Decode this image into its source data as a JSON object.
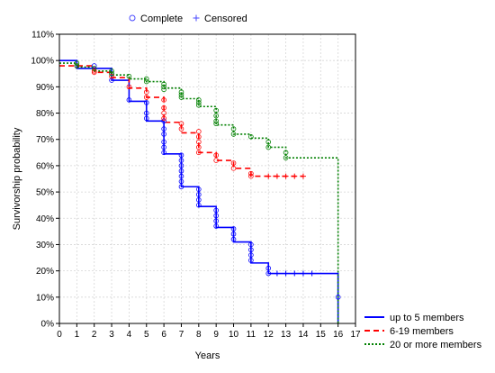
{
  "chart_data": {
    "type": "line",
    "subtype": "kaplan-meier survival curves",
    "title": "",
    "xlabel": "Years",
    "ylabel": "Survivorship probability",
    "xlim": [
      0,
      17
    ],
    "ylim": [
      0,
      1.1
    ],
    "x_ticks": [
      0,
      1,
      2,
      3,
      4,
      5,
      6,
      7,
      8,
      9,
      10,
      11,
      12,
      13,
      14,
      15,
      16,
      17
    ],
    "y_ticks": [
      0,
      0.1,
      0.2,
      0.3,
      0.4,
      0.5,
      0.6,
      0.7,
      0.8,
      0.9,
      1.0,
      1.1
    ],
    "y_tick_labels": [
      "0%",
      "10%",
      "20%",
      "30%",
      "40%",
      "50%",
      "60%",
      "70%",
      "80%",
      "90%",
      "100%",
      "110%"
    ],
    "grid": true,
    "marker_legend": {
      "placement": "top-left",
      "items": [
        {
          "label": "Complete",
          "marker": "circle"
        },
        {
          "label": "Censored",
          "marker": "plus"
        }
      ]
    },
    "legend_placement": "bottom-right",
    "series": [
      {
        "name": "up to 5 members",
        "color": "#0000ff",
        "dash": "solid",
        "steps": [
          [
            0,
            1.0
          ],
          [
            1,
            0.97
          ],
          [
            3,
            0.925
          ],
          [
            4,
            0.845
          ],
          [
            5,
            0.77
          ],
          [
            6,
            0.645
          ],
          [
            7,
            0.52
          ],
          [
            8,
            0.445
          ],
          [
            9,
            0.365
          ],
          [
            10,
            0.31
          ],
          [
            11,
            0.23
          ],
          [
            12,
            0.19
          ],
          [
            16,
            0.0
          ]
        ],
        "complete_events": [
          [
            1,
            0.98
          ],
          [
            2,
            0.98
          ],
          [
            3,
            0.95
          ],
          [
            3,
            0.925
          ],
          [
            4,
            0.85
          ],
          [
            5,
            0.84
          ],
          [
            5,
            0.8
          ],
          [
            5,
            0.78
          ],
          [
            6,
            0.77
          ],
          [
            6,
            0.74
          ],
          [
            6,
            0.72
          ],
          [
            6,
            0.69
          ],
          [
            6,
            0.67
          ],
          [
            6,
            0.65
          ],
          [
            7,
            0.64
          ],
          [
            7,
            0.62
          ],
          [
            7,
            0.6
          ],
          [
            7,
            0.58
          ],
          [
            7,
            0.56
          ],
          [
            7,
            0.54
          ],
          [
            7,
            0.52
          ],
          [
            8,
            0.51
          ],
          [
            8,
            0.49
          ],
          [
            8,
            0.47
          ],
          [
            8,
            0.45
          ],
          [
            9,
            0.43
          ],
          [
            9,
            0.41
          ],
          [
            9,
            0.39
          ],
          [
            9,
            0.37
          ],
          [
            10,
            0.36
          ],
          [
            10,
            0.34
          ],
          [
            10,
            0.32
          ],
          [
            11,
            0.3
          ],
          [
            11,
            0.28
          ],
          [
            11,
            0.26
          ],
          [
            11,
            0.24
          ],
          [
            12,
            0.21
          ],
          [
            12,
            0.19
          ],
          [
            16,
            0.1
          ]
        ],
        "censored": [
          [
            12.5,
            0.19
          ],
          [
            13,
            0.19
          ],
          [
            13.5,
            0.19
          ],
          [
            14,
            0.19
          ],
          [
            14.5,
            0.19
          ]
        ]
      },
      {
        "name": "6-19 members",
        "color": "#ff0000",
        "dash": "dashed",
        "steps": [
          [
            0,
            0.98
          ],
          [
            2,
            0.955
          ],
          [
            3,
            0.935
          ],
          [
            4,
            0.895
          ],
          [
            5,
            0.86
          ],
          [
            6,
            0.765
          ],
          [
            7,
            0.725
          ],
          [
            8,
            0.65
          ],
          [
            9,
            0.62
          ],
          [
            10,
            0.59
          ],
          [
            11,
            0.56
          ],
          [
            14,
            0.56
          ]
        ],
        "complete_events": [
          [
            1,
            0.98
          ],
          [
            2,
            0.96
          ],
          [
            2,
            0.955
          ],
          [
            3,
            0.94
          ],
          [
            4,
            0.9
          ],
          [
            5,
            0.88
          ],
          [
            5,
            0.86
          ],
          [
            6,
            0.85
          ],
          [
            6,
            0.82
          ],
          [
            6,
            0.8
          ],
          [
            6,
            0.78
          ],
          [
            7,
            0.76
          ],
          [
            7,
            0.74
          ],
          [
            8,
            0.73
          ],
          [
            8,
            0.71
          ],
          [
            8,
            0.69
          ],
          [
            8,
            0.67
          ],
          [
            8,
            0.65
          ],
          [
            9,
            0.64
          ],
          [
            9,
            0.62
          ],
          [
            10,
            0.61
          ],
          [
            10,
            0.59
          ],
          [
            11,
            0.57
          ],
          [
            11,
            0.56
          ]
        ],
        "censored": [
          [
            12,
            0.56
          ],
          [
            12.5,
            0.56
          ],
          [
            13,
            0.56
          ],
          [
            13.5,
            0.56
          ],
          [
            14,
            0.56
          ]
        ]
      },
      {
        "name": "20 or more members",
        "color": "#008000",
        "dash": "dotted",
        "steps": [
          [
            0,
            0.99
          ],
          [
            1,
            0.975
          ],
          [
            2,
            0.96
          ],
          [
            3,
            0.945
          ],
          [
            4,
            0.93
          ],
          [
            5,
            0.92
          ],
          [
            6,
            0.895
          ],
          [
            7,
            0.855
          ],
          [
            8,
            0.825
          ],
          [
            9,
            0.755
          ],
          [
            10,
            0.72
          ],
          [
            11,
            0.705
          ],
          [
            12,
            0.67
          ],
          [
            13,
            0.63
          ],
          [
            16,
            0.0
          ]
        ],
        "complete_events": [
          [
            1,
            0.99
          ],
          [
            1,
            0.98
          ],
          [
            2,
            0.97
          ],
          [
            3,
            0.96
          ],
          [
            3,
            0.95
          ],
          [
            4,
            0.94
          ],
          [
            5,
            0.93
          ],
          [
            5,
            0.92
          ],
          [
            6,
            0.91
          ],
          [
            6,
            0.9
          ],
          [
            6,
            0.89
          ],
          [
            7,
            0.88
          ],
          [
            7,
            0.87
          ],
          [
            7,
            0.86
          ],
          [
            8,
            0.85
          ],
          [
            8,
            0.84
          ],
          [
            8,
            0.83
          ],
          [
            9,
            0.81
          ],
          [
            9,
            0.79
          ],
          [
            9,
            0.77
          ],
          [
            9,
            0.76
          ],
          [
            10,
            0.74
          ],
          [
            10,
            0.72
          ],
          [
            11,
            0.71
          ],
          [
            12,
            0.69
          ],
          [
            12,
            0.67
          ],
          [
            13,
            0.65
          ],
          [
            13,
            0.63
          ]
        ],
        "censored": []
      }
    ]
  }
}
